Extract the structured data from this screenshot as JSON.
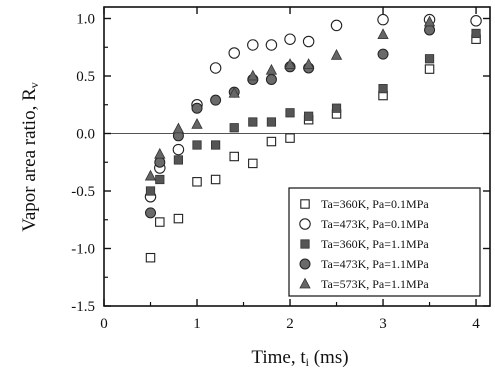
{
  "chart_data": {
    "type": "scatter",
    "xlabel": "Time, t",
    "xlabel_sub": "i",
    "xlabel_unit": " (ms)",
    "ylabel": "Vapor area ratio, R",
    "ylabel_sub": "v",
    "xlim": [
      0,
      4.15
    ],
    "ylim": [
      -1.5,
      1.1
    ],
    "xticks": [
      0,
      1,
      2,
      3,
      4
    ],
    "yticks": [
      -1.5,
      -1.0,
      -0.5,
      0.0,
      0.5,
      1.0
    ],
    "xtick_labels": [
      "0",
      "1",
      "2",
      "3",
      "4"
    ],
    "ytick_labels": [
      "-1.5",
      "-1.0",
      "-0.5",
      "0.0",
      "0.5",
      "1.0"
    ],
    "reference_line_y": 0,
    "grid": false,
    "legend_position": "lower-right",
    "series": [
      {
        "name": "Ta=360K, Pa=0.1MPa",
        "marker": "square-open",
        "x": [
          0.5,
          0.6,
          0.8,
          1.0,
          1.2,
          1.4,
          1.6,
          1.8,
          2.0,
          2.2,
          2.5,
          3.0,
          3.5,
          4.0
        ],
        "y": [
          -1.08,
          -0.77,
          -0.74,
          -0.42,
          -0.4,
          -0.2,
          -0.26,
          -0.07,
          -0.04,
          0.12,
          0.17,
          0.33,
          0.56,
          0.82
        ]
      },
      {
        "name": "Ta=473K, Pa=0.1MPa",
        "marker": "circle-open",
        "x": [
          0.5,
          0.6,
          0.8,
          1.0,
          1.2,
          1.4,
          1.6,
          1.8,
          2.0,
          2.2,
          2.5,
          3.0,
          3.5,
          4.0
        ],
        "y": [
          -0.55,
          -0.3,
          -0.14,
          0.25,
          0.57,
          0.7,
          0.77,
          0.77,
          0.82,
          0.8,
          0.94,
          0.99,
          0.99,
          0.98
        ]
      },
      {
        "name": "Ta=360K, Pa=1.1MPa",
        "marker": "square-filled",
        "x": [
          0.5,
          0.6,
          0.8,
          1.0,
          1.2,
          1.4,
          1.6,
          1.8,
          2.0,
          2.2,
          2.5,
          3.0,
          3.5,
          4.0
        ],
        "y": [
          -0.5,
          -0.4,
          -0.23,
          -0.1,
          -0.1,
          0.05,
          0.1,
          0.1,
          0.18,
          0.15,
          0.22,
          0.39,
          0.65,
          0.87
        ]
      },
      {
        "name": "Ta=473K, Pa=1.1MPa",
        "marker": "circle-filled",
        "x": [
          0.5,
          0.6,
          0.8,
          1.0,
          1.2,
          1.4,
          1.6,
          1.8,
          2.0,
          2.2,
          3.0,
          3.5
        ],
        "y": [
          -0.69,
          -0.25,
          -0.02,
          0.22,
          0.29,
          0.36,
          0.47,
          0.47,
          0.58,
          0.57,
          0.69,
          0.9
        ]
      },
      {
        "name": "Ta=573K, Pa=1.1MPa",
        "marker": "triangle-filled",
        "x": [
          0.5,
          0.6,
          0.8,
          1.0,
          1.4,
          1.6,
          1.8,
          2.0,
          2.2,
          2.5,
          3.0,
          3.5
        ],
        "y": [
          -0.37,
          -0.18,
          0.04,
          0.08,
          0.35,
          0.5,
          0.55,
          0.6,
          0.6,
          0.68,
          0.86,
          0.97
        ]
      }
    ]
  }
}
